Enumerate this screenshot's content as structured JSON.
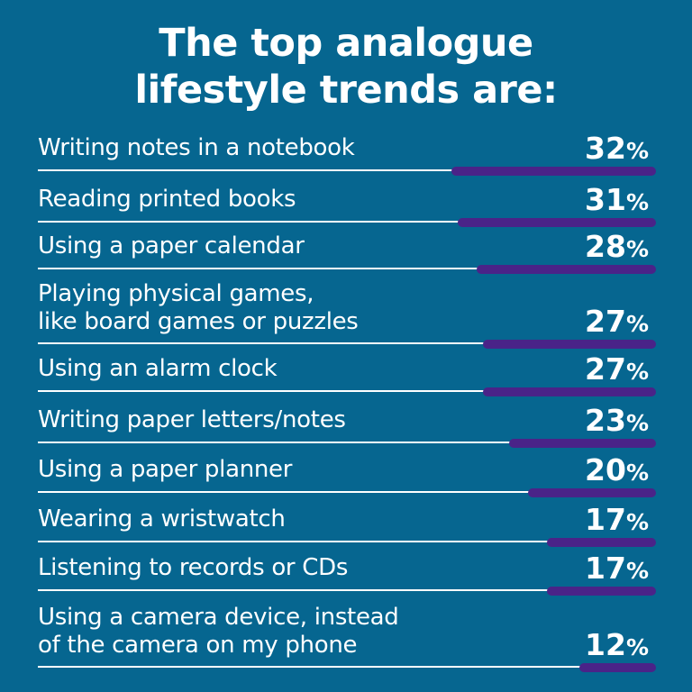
{
  "title_lines": [
    "The top analogue",
    "lifestyle trends are:"
  ],
  "colors": {
    "background": "#066690",
    "bar": "#4a2388",
    "text": "#ffffff"
  },
  "chart_data": {
    "type": "bar",
    "orientation": "horizontal",
    "title": "The top analogue lifestyle trends are:",
    "unit": "%",
    "categories": [
      "Writing notes in a notebook",
      "Reading printed books",
      "Using a paper calendar",
      "Playing physical games,\nlike board games or puzzles",
      "Using an alarm clock",
      "Writing paper letters/notes",
      "Using a paper planner",
      "Wearing a wristwatch",
      "Listening to records or CDs",
      "Using a camera device, instead\nof the camera on my phone"
    ],
    "values": [
      32,
      31,
      28,
      27,
      27,
      23,
      20,
      17,
      17,
      12
    ]
  }
}
